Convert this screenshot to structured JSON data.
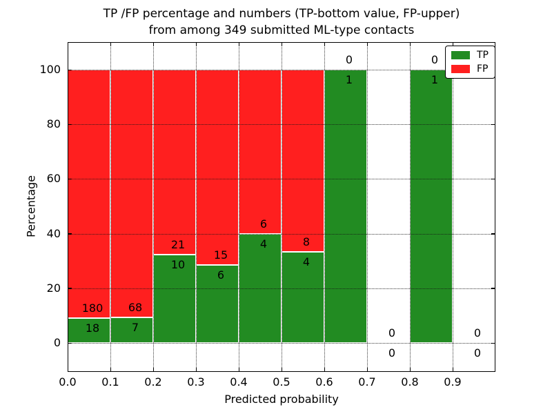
{
  "title": {
    "line1": "TP /FP percentage and numbers (TP-bottom value, FP-upper)",
    "line2": "from among 349 submitted ML-type contacts"
  },
  "legend": {
    "items": [
      {
        "label": "TP",
        "color": "#228b22"
      },
      {
        "label": "FP",
        "color": "#ff1f1f"
      }
    ]
  },
  "chart_data": {
    "type": "bar",
    "stacked": true,
    "title": "TP /FP percentage and numbers (TP-bottom value, FP-upper) from among 349 submitted ML-type contacts",
    "xlabel": "Predicted probability",
    "ylabel": "Percentage",
    "total_contacts": 349,
    "bin_width": 0.1,
    "xlim": [
      0.0,
      1.0
    ],
    "ylim": [
      -11,
      110
    ],
    "grid": true,
    "legend_position": "upper right",
    "colors": {
      "tp": "#228b22",
      "fp": "#ff1f1f"
    },
    "yticks": [
      0,
      20,
      40,
      60,
      80,
      100
    ],
    "xticks": [
      "0.0",
      "0.1",
      "0.2",
      "0.3",
      "0.4",
      "0.5",
      "0.6",
      "0.7",
      "0.8",
      "0.9"
    ],
    "bins": [
      {
        "range": "0.0-0.1",
        "tp": 18,
        "fp": 180,
        "tp_pct": 9.09,
        "fp_pct": 90.91
      },
      {
        "range": "0.1-0.2",
        "tp": 7,
        "fp": 68,
        "tp_pct": 9.33,
        "fp_pct": 90.67
      },
      {
        "range": "0.2-0.3",
        "tp": 10,
        "fp": 21,
        "tp_pct": 32.26,
        "fp_pct": 67.74
      },
      {
        "range": "0.3-0.4",
        "tp": 6,
        "fp": 15,
        "tp_pct": 28.57,
        "fp_pct": 71.43
      },
      {
        "range": "0.4-0.5",
        "tp": 4,
        "fp": 6,
        "tp_pct": 40.0,
        "fp_pct": 60.0
      },
      {
        "range": "0.5-0.6",
        "tp": 4,
        "fp": 8,
        "tp_pct": 33.33,
        "fp_pct": 66.67
      },
      {
        "range": "0.6-0.7",
        "tp": 1,
        "fp": 0,
        "tp_pct": 100.0,
        "fp_pct": 0.0
      },
      {
        "range": "0.7-0.8",
        "tp": 0,
        "fp": 0,
        "tp_pct": 0.0,
        "fp_pct": 0.0
      },
      {
        "range": "0.8-0.9",
        "tp": 1,
        "fp": 0,
        "tp_pct": 100.0,
        "fp_pct": 0.0
      },
      {
        "range": "0.9-1.0",
        "tp": 0,
        "fp": 0,
        "tp_pct": 0.0,
        "fp_pct": 0.0
      }
    ]
  }
}
